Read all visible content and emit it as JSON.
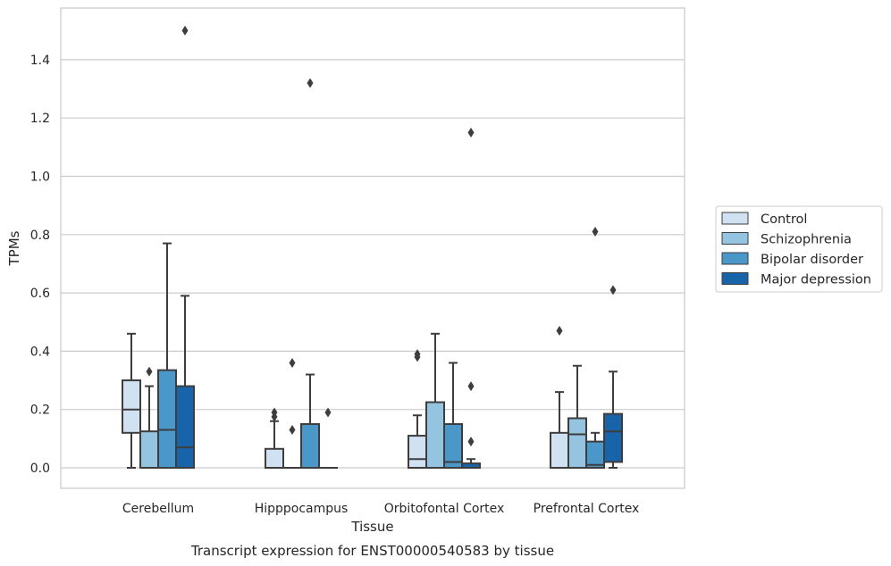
{
  "chart_data": {
    "type": "box",
    "xlabel": "Tissue",
    "ylabel": "TPMs",
    "caption": "Transcript expression for ENST00000540583 by tissue",
    "ylim": [
      -0.07,
      1.57
    ],
    "yticks": [
      0.0,
      0.2,
      0.4,
      0.6,
      0.8,
      1.0,
      1.2,
      1.4
    ],
    "ytick_labels": [
      "0.0",
      "0.2",
      "0.4",
      "0.6",
      "0.8",
      "1.0",
      "1.2",
      "1.4"
    ],
    "grid": "horizontal",
    "legend_position": "right",
    "categories": [
      "Cerebellum",
      "Hipppocampus",
      "Orbitofontal Cortex",
      "Prefrontal Cortex"
    ],
    "series": [
      {
        "name": "Control",
        "color": "#d0e1f2",
        "boxes": [
          {
            "whislo": 0.0,
            "q1": 0.12,
            "med": 0.2,
            "q3": 0.3,
            "whishi": 0.46,
            "fliers": []
          },
          {
            "whislo": 0.0,
            "q1": 0.0,
            "med": 0.0,
            "q3": 0.065,
            "whishi": 0.16,
            "fliers": [
              0.19,
              0.175
            ]
          },
          {
            "whislo": 0.0,
            "q1": 0.0,
            "med": 0.03,
            "q3": 0.11,
            "whishi": 0.18,
            "fliers": [
              0.39,
              0.38
            ]
          },
          {
            "whislo": 0.0,
            "q1": 0.0,
            "med": 0.0,
            "q3": 0.12,
            "whishi": 0.26,
            "fliers": [
              0.47
            ]
          }
        ]
      },
      {
        "name": "Schizophrenia",
        "color": "#94c4df",
        "boxes": [
          {
            "whislo": 0.0,
            "q1": 0.0,
            "med": 0.0,
            "q3": 0.125,
            "whishi": 0.28,
            "fliers": [
              0.33
            ]
          },
          {
            "whislo": 0.0,
            "q1": 0.0,
            "med": 0.0,
            "q3": 0.0,
            "whishi": 0.0,
            "fliers": [
              0.13,
              0.36
            ]
          },
          {
            "whislo": 0.0,
            "q1": 0.0,
            "med": 0.0,
            "q3": 0.225,
            "whishi": 0.46,
            "fliers": []
          },
          {
            "whislo": 0.0,
            "q1": 0.0,
            "med": 0.115,
            "q3": 0.17,
            "whishi": 0.35,
            "fliers": []
          }
        ]
      },
      {
        "name": "Bipolar disorder",
        "color": "#4a98c9",
        "boxes": [
          {
            "whislo": 0.0,
            "q1": 0.0,
            "med": 0.13,
            "q3": 0.335,
            "whishi": 0.77,
            "fliers": []
          },
          {
            "whislo": 0.0,
            "q1": 0.0,
            "med": 0.0,
            "q3": 0.15,
            "whishi": 0.32,
            "fliers": [
              1.32
            ]
          },
          {
            "whislo": 0.0,
            "q1": 0.0,
            "med": 0.02,
            "q3": 0.15,
            "whishi": 0.36,
            "fliers": []
          },
          {
            "whislo": 0.0,
            "q1": 0.0,
            "med": 0.01,
            "q3": 0.09,
            "whishi": 0.12,
            "fliers": [
              0.81
            ]
          }
        ]
      },
      {
        "name": "Major depression",
        "color": "#1764ab",
        "boxes": [
          {
            "whislo": 0.0,
            "q1": 0.0,
            "med": 0.07,
            "q3": 0.28,
            "whishi": 0.59,
            "fliers": [
              1.5
            ]
          },
          {
            "whislo": 0.0,
            "q1": 0.0,
            "med": 0.0,
            "q3": 0.0,
            "whishi": 0.0,
            "fliers": [
              0.19
            ]
          },
          {
            "whislo": 0.0,
            "q1": 0.0,
            "med": 0.0,
            "q3": 0.015,
            "whishi": 0.03,
            "fliers": [
              1.15,
              0.28,
              0.09
            ]
          },
          {
            "whislo": 0.0,
            "q1": 0.02,
            "med": 0.125,
            "q3": 0.185,
            "whishi": 0.33,
            "fliers": [
              0.61
            ]
          }
        ]
      }
    ]
  }
}
